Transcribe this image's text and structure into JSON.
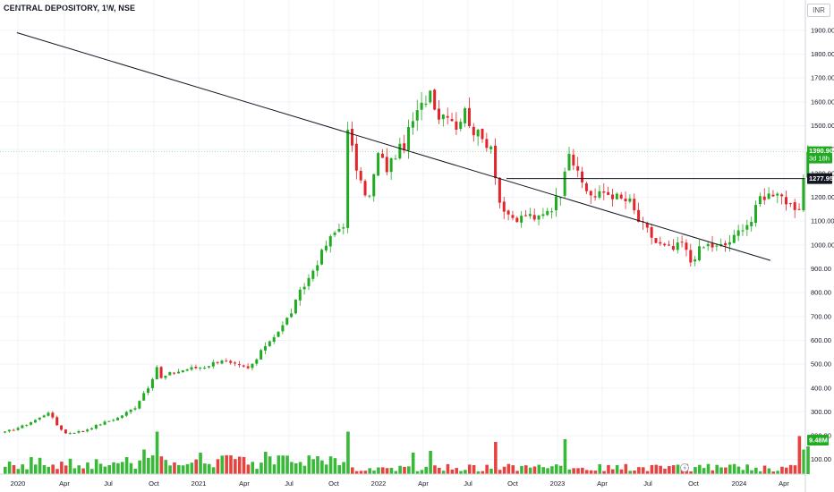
{
  "title": "CENTRAL DEPOSITORY, 1W, NSE",
  "currency": "INR",
  "chart_data": {
    "type": "candlestick",
    "title": "CENTRAL DEPOSITORY, 1W, NSE",
    "currency": "INR",
    "y_ticks": [
      "100.00",
      "200.00",
      "300.00",
      "400.00",
      "500.00",
      "600.00",
      "700.00",
      "800.00",
      "900.00",
      "1000.00",
      "1100.00",
      "1200.00",
      "1300.00",
      "1400.00",
      "1500.00",
      "1600.00",
      "1700.00",
      "1800.00",
      "1900.00"
    ],
    "ylim": [
      0,
      1980
    ],
    "x_ticks": [
      "2020",
      "Apr",
      "Jul",
      "Oct",
      "2021",
      "Apr",
      "Jul",
      "Oct",
      "2022",
      "Apr",
      "Jul",
      "Oct",
      "2023",
      "Apr",
      "Jul",
      "Oct",
      "2024",
      "Apr"
    ],
    "last_price": "1390.90",
    "countdown": "3d 18h",
    "level_price": "1277.95",
    "volume_label": "9.48M",
    "price_anchors": [
      [
        0,
        215
      ],
      [
        4,
        240
      ],
      [
        8,
        275
      ],
      [
        10,
        300
      ],
      [
        12,
        245
      ],
      [
        14,
        210
      ],
      [
        18,
        220
      ],
      [
        22,
        250
      ],
      [
        26,
        275
      ],
      [
        30,
        320
      ],
      [
        32,
        380
      ],
      [
        34,
        430
      ],
      [
        35,
        490
      ],
      [
        36,
        440
      ],
      [
        38,
        460
      ],
      [
        42,
        480
      ],
      [
        46,
        490
      ],
      [
        50,
        520
      ],
      [
        52,
        500
      ],
      [
        54,
        490
      ],
      [
        56,
        480
      ],
      [
        58,
        520
      ],
      [
        60,
        580
      ],
      [
        62,
        620
      ],
      [
        64,
        660
      ],
      [
        66,
        720
      ],
      [
        68,
        800
      ],
      [
        70,
        860
      ],
      [
        72,
        930
      ],
      [
        74,
        1000
      ],
      [
        76,
        1050
      ],
      [
        78,
        1090
      ],
      [
        79,
        1470
      ],
      [
        80,
        1400
      ],
      [
        82,
        1250
      ],
      [
        84,
        1200
      ],
      [
        86,
        1380
      ],
      [
        88,
        1320
      ],
      [
        90,
        1380
      ],
      [
        92,
        1420
      ],
      [
        94,
        1520
      ],
      [
        96,
        1580
      ],
      [
        98,
        1650
      ],
      [
        100,
        1540
      ],
      [
        102,
        1560
      ],
      [
        104,
        1500
      ],
      [
        106,
        1560
      ],
      [
        108,
        1480
      ],
      [
        110,
        1440
      ],
      [
        112,
        1420
      ],
      [
        113,
        1300
      ],
      [
        114,
        1180
      ],
      [
        116,
        1110
      ],
      [
        118,
        1100
      ],
      [
        120,
        1130
      ],
      [
        122,
        1100
      ],
      [
        124,
        1140
      ],
      [
        126,
        1160
      ],
      [
        128,
        1220
      ],
      [
        129,
        1330
      ],
      [
        130,
        1400
      ],
      [
        132,
        1290
      ],
      [
        134,
        1230
      ],
      [
        136,
        1200
      ],
      [
        138,
        1220
      ],
      [
        140,
        1210
      ],
      [
        142,
        1190
      ],
      [
        144,
        1180
      ],
      [
        146,
        1100
      ],
      [
        148,
        1060
      ],
      [
        150,
        1010
      ],
      [
        152,
        990
      ],
      [
        154,
        980
      ],
      [
        156,
        1010
      ],
      [
        158,
        930
      ],
      [
        160,
        980
      ],
      [
        162,
        1000
      ],
      [
        164,
        990
      ],
      [
        166,
        1000
      ],
      [
        168,
        1030
      ],
      [
        170,
        1080
      ],
      [
        172,
        1100
      ],
      [
        174,
        1200
      ],
      [
        176,
        1210
      ],
      [
        178,
        1230
      ],
      [
        180,
        1180
      ],
      [
        182,
        1130
      ],
      [
        183,
        1150
      ],
      [
        184,
        1278
      ],
      [
        185,
        1390
      ]
    ],
    "trendline": {
      "start": [
        -6,
        1890
      ],
      "end": [
        210,
        1050
      ]
    },
    "horizontal_level": {
      "start": [
        130,
        1278
      ],
      "end": "right-edge"
    }
  }
}
